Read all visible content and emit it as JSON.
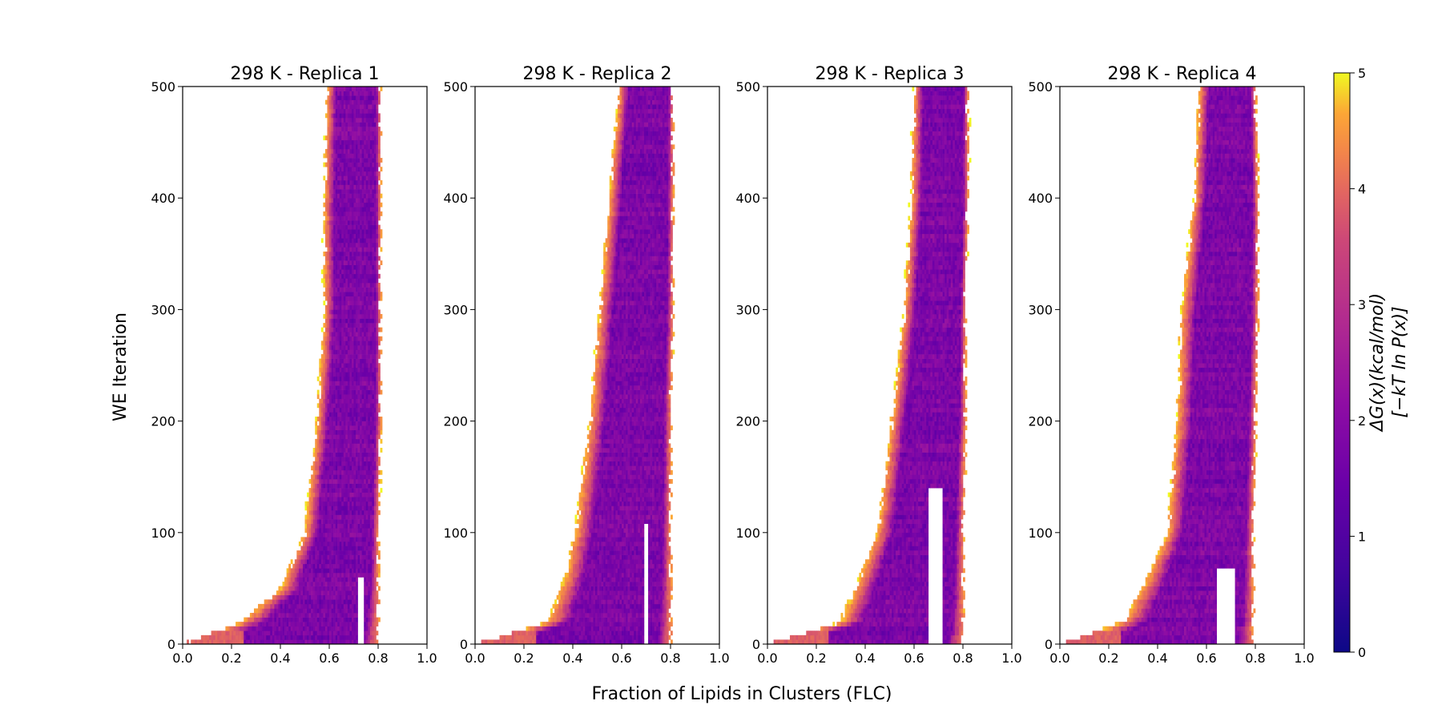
{
  "chart_data": {
    "type": "heatmap",
    "xlabel": "Fraction of Lipids in Clusters (FLC)",
    "ylabel": "WE Iteration",
    "xlim": [
      0.0,
      1.0
    ],
    "ylim": [
      0,
      500
    ],
    "x_ticks": [
      "0.0",
      "0.2",
      "0.4",
      "0.6",
      "0.8",
      "1.0"
    ],
    "y_ticks": [
      "0",
      "100",
      "200",
      "300",
      "400",
      "500"
    ],
    "colormap": "plasma",
    "colorbar": {
      "label_line1": "ΔG(x)(kcal/mol)",
      "label_line2": "[−kT ln P(x)]",
      "range": [
        0,
        5
      ],
      "ticks": [
        "0",
        "1",
        "2",
        "3",
        "4",
        "5"
      ]
    },
    "panels": [
      {
        "title": "298 K - Replica 1",
        "profile": [
          [
            0,
            0.0,
            0.8
          ],
          [
            20,
            0.24,
            0.8
          ],
          [
            50,
            0.4,
            0.8
          ],
          [
            100,
            0.5,
            0.8
          ],
          [
            200,
            0.55,
            0.81
          ],
          [
            300,
            0.58,
            0.81
          ],
          [
            400,
            0.58,
            0.81
          ],
          [
            500,
            0.59,
            0.81
          ]
        ],
        "channel": [
          0.72,
          0.74,
          60
        ]
      },
      {
        "title": "298 K - Replica 2",
        "profile": [
          [
            0,
            0.0,
            0.8
          ],
          [
            20,
            0.3,
            0.8
          ],
          [
            60,
            0.37,
            0.8
          ],
          [
            100,
            0.41,
            0.8
          ],
          [
            200,
            0.47,
            0.8
          ],
          [
            300,
            0.51,
            0.81
          ],
          [
            400,
            0.55,
            0.81
          ],
          [
            500,
            0.59,
            0.81
          ]
        ],
        "channel": [
          0.69,
          0.71,
          110
        ]
      },
      {
        "title": "298 K - Replica 3",
        "profile": [
          [
            0,
            0.0,
            0.8
          ],
          [
            20,
            0.3,
            0.8
          ],
          [
            60,
            0.38,
            0.8
          ],
          [
            100,
            0.45,
            0.8
          ],
          [
            200,
            0.51,
            0.81
          ],
          [
            300,
            0.56,
            0.81
          ],
          [
            400,
            0.59,
            0.82
          ],
          [
            500,
            0.6,
            0.82
          ]
        ],
        "channel": [
          0.66,
          0.72,
          140
        ]
      },
      {
        "title": "298 K - Replica 4",
        "profile": [
          [
            0,
            0.0,
            0.79
          ],
          [
            20,
            0.26,
            0.79
          ],
          [
            60,
            0.36,
            0.79
          ],
          [
            100,
            0.44,
            0.79
          ],
          [
            200,
            0.48,
            0.8
          ],
          [
            300,
            0.5,
            0.81
          ],
          [
            400,
            0.55,
            0.81
          ],
          [
            500,
            0.57,
            0.8
          ]
        ],
        "channel": [
          0.64,
          0.72,
          70
        ]
      }
    ]
  }
}
